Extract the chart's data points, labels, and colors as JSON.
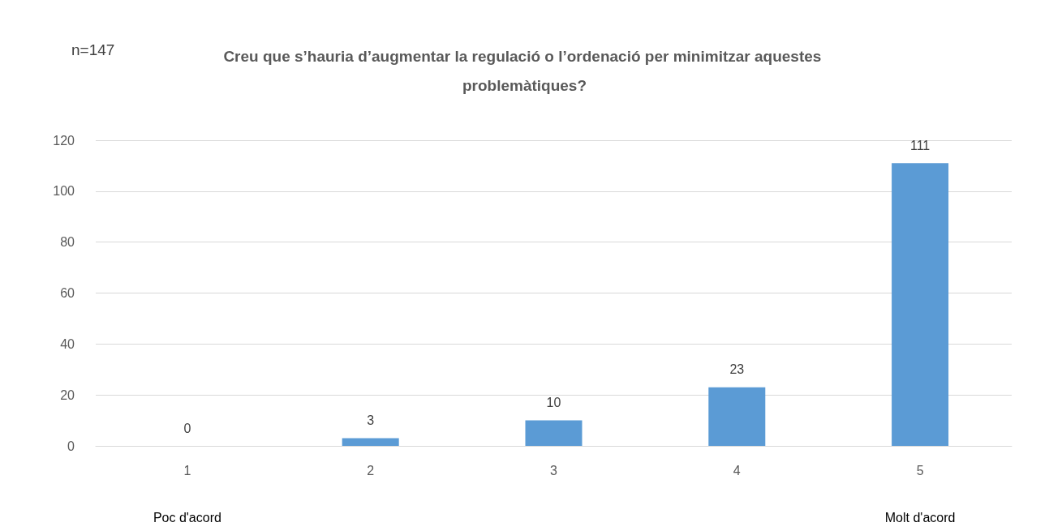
{
  "chart_data": {
    "type": "bar",
    "title": "Creu que s’hauria d’augmentar la regulació o l’ordenació per minimitzar aquestes problemàtiques?",
    "subtitle": "n=147",
    "categories": [
      "1",
      "2",
      "3",
      "4",
      "5"
    ],
    "values": [
      0,
      3,
      10,
      23,
      111
    ],
    "color": "#5b9bd5",
    "ylim": [
      0,
      120
    ],
    "yticks": [
      0,
      20,
      40,
      60,
      80,
      100,
      120
    ],
    "grid": "y",
    "data_labels": true,
    "annotations": [
      "Poc d'acord",
      "Molt d'acord"
    ]
  }
}
